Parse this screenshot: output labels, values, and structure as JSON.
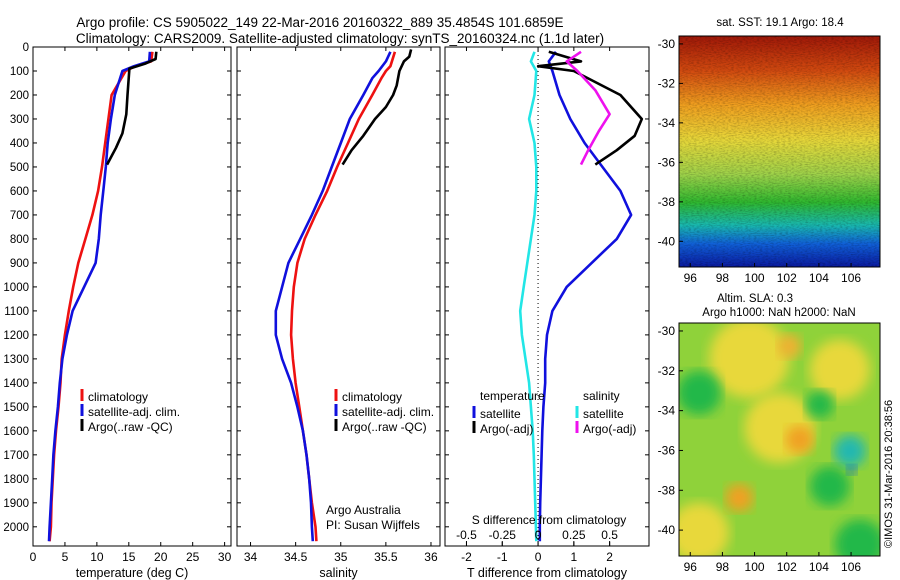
{
  "header": {
    "line1": "Argo profile: CS 5905022_149 22-Mar-2016 20160322_889 35.4854S 101.6859E",
    "line2": "Climatology: CARS2009. Satellite-adjusted climatology: synTS_20160324.nc (1.1d later)"
  },
  "colors": {
    "climatology": "#ee1111",
    "satellite": "#1010dd",
    "argo": "#000000",
    "sat_salinity": "#22e6e6",
    "argo_salinity": "#ee11ee"
  },
  "chart_data": [
    {
      "type": "line",
      "id": "temperature",
      "xlabel": "temperature (deg C)",
      "ylabel": "",
      "xlim": [
        0,
        31
      ],
      "ylim": [
        2080,
        0
      ],
      "y_inverted": true,
      "xticks": [
        "0",
        "5",
        "10",
        "15",
        "20",
        "25",
        "30"
      ],
      "yticks": [
        "0",
        "100",
        "200",
        "300",
        "400",
        "500",
        "600",
        "700",
        "800",
        "900",
        "1000",
        "1100",
        "1200",
        "1300",
        "1400",
        "1500",
        "1600",
        "1700",
        "1800",
        "1900",
        "2000"
      ],
      "legend": [
        "climatology",
        "satellite-adj. clim.",
        "Argo(..raw -QC)"
      ],
      "series": [
        {
          "name": "climatology",
          "color": "#ee1111",
          "x": [
            18.7,
            18.5,
            16,
            14.5,
            12.3,
            11.8,
            11.3,
            10.8,
            10.2,
            9.3,
            8.2,
            7.1,
            6.3,
            5.6,
            5,
            4.5,
            4.3,
            4,
            3.6,
            3.3,
            3.1,
            2.9,
            2.8,
            2.6
          ],
          "y": [
            20,
            60,
            80,
            100,
            200,
            300,
            400,
            500,
            600,
            700,
            800,
            900,
            1000,
            1100,
            1200,
            1300,
            1400,
            1500,
            1600,
            1700,
            1800,
            1900,
            2000,
            2060
          ]
        },
        {
          "name": "satellite-adj. clim.",
          "color": "#1010dd",
          "x": [
            18.3,
            18.2,
            15.8,
            14,
            12.8,
            12.2,
            11.7,
            11.4,
            11,
            10.6,
            10.3,
            9.8,
            8,
            6.2,
            5.3,
            4.6,
            4.2,
            3.9,
            3.5,
            3.2,
            3,
            2.8,
            2.6,
            2.5
          ],
          "y": [
            20,
            60,
            80,
            100,
            200,
            300,
            400,
            500,
            600,
            700,
            800,
            900,
            1000,
            1100,
            1200,
            1300,
            1400,
            1500,
            1600,
            1700,
            1800,
            1900,
            2000,
            2060
          ]
        },
        {
          "name": "Argo(..raw -QC)",
          "color": "#000000",
          "x": [
            19.3,
            19.2,
            17.5,
            15.1,
            14.8,
            14.6,
            14,
            13,
            12.2,
            11.6
          ],
          "y": [
            20,
            50,
            70,
            90,
            200,
            280,
            360,
            420,
            460,
            490
          ]
        }
      ]
    },
    {
      "type": "line",
      "id": "salinity",
      "xlabel": "salinity",
      "ylabel": "",
      "xlim": [
        33.85,
        36.1
      ],
      "ylim": [
        2080,
        0
      ],
      "y_inverted": true,
      "xticks": [
        "34",
        "34.5",
        "35",
        "35.5",
        "36"
      ],
      "legend": [
        "climatology",
        "satellite-adj. clim.",
        "Argo(..raw -QC)"
      ],
      "annotation": [
        "Argo Australia",
        "PI: Susan Wijffels"
      ],
      "series": [
        {
          "name": "climatology",
          "color": "#ee1111",
          "x": [
            35.6,
            35.55,
            35.5,
            35.45,
            35.35,
            35.2,
            35.08,
            34.96,
            34.85,
            34.72,
            34.6,
            34.52,
            34.48,
            34.46,
            34.45,
            34.47,
            34.5,
            34.54,
            34.58,
            34.62,
            34.65,
            34.68,
            34.72,
            34.73
          ],
          "y": [
            20,
            80,
            100,
            130,
            200,
            300,
            400,
            500,
            600,
            700,
            800,
            900,
            1000,
            1100,
            1200,
            1300,
            1400,
            1500,
            1600,
            1700,
            1800,
            1900,
            2000,
            2060
          ]
        },
        {
          "name": "satellite-adj. clim.",
          "color": "#1010dd",
          "x": [
            35.55,
            35.5,
            35.42,
            35.35,
            35.25,
            35.1,
            35,
            34.9,
            34.8,
            34.68,
            34.55,
            34.42,
            34.35,
            34.28,
            34.28,
            34.35,
            34.45,
            34.52,
            34.58,
            34.62,
            34.65,
            34.67,
            34.68,
            34.69
          ],
          "y": [
            20,
            60,
            100,
            130,
            200,
            300,
            400,
            500,
            600,
            700,
            800,
            900,
            1000,
            1100,
            1200,
            1300,
            1400,
            1500,
            1600,
            1700,
            1800,
            1900,
            2000,
            2060
          ]
        },
        {
          "name": "Argo(..raw -QC)",
          "color": "#000000",
          "x": [
            35.78,
            35.76,
            35.7,
            35.65,
            35.62,
            35.58,
            35.5,
            35.38,
            35.25,
            35.12,
            35.02
          ],
          "y": [
            10,
            40,
            60,
            100,
            160,
            200,
            250,
            300,
            370,
            430,
            490
          ]
        }
      ]
    },
    {
      "type": "line",
      "id": "difference",
      "xlabel": "T difference from climatology",
      "xlabel_top": "S difference from climatology",
      "xlim": [
        -2.6,
        3.1
      ],
      "ylim": [
        2080,
        0
      ],
      "y_inverted": true,
      "xticks": [
        "-2",
        "-1",
        "0",
        "1",
        "2"
      ],
      "xticks_top": [
        "-0.5",
        "-0.25",
        "0",
        "0.25",
        "0.5"
      ],
      "legend_titles": [
        "temperature",
        "salinity"
      ],
      "legend": [
        "satellite",
        "Argo(-adj)",
        "satellite",
        "Argo(-adj)"
      ],
      "series": [
        {
          "name": "temperature satellite",
          "color": "#1010dd",
          "x": [
            0.5,
            0.3,
            0.4,
            0.6,
            0.9,
            1.3,
            1.8,
            2.3,
            2.6,
            2.2,
            1.5,
            0.8,
            0.4,
            0.25,
            0.2,
            0.2,
            0.15,
            0.12,
            0.1,
            0.08,
            0.06,
            0.05,
            0.05
          ],
          "y": [
            20,
            60,
            100,
            200,
            300,
            400,
            500,
            600,
            700,
            800,
            900,
            1000,
            1100,
            1200,
            1300,
            1400,
            1500,
            1600,
            1700,
            1800,
            1900,
            2000,
            2060
          ]
        },
        {
          "name": "temperature Argo(-adj)",
          "color": "#000000",
          "x": [
            0.3,
            1.2,
            0,
            1,
            2.3,
            2.9,
            2.7,
            2.2,
            1.6
          ],
          "y": [
            20,
            60,
            80,
            100,
            200,
            300,
            370,
            430,
            490
          ]
        },
        {
          "name": "salinity satellite",
          "color": "#22e6e6",
          "x": [
            -0.1,
            -0.2,
            -0.05,
            -0.1,
            -0.25,
            -0.1,
            -0.05,
            -0.05,
            -0.1,
            -0.2,
            -0.3,
            -0.4,
            -0.5,
            -0.45,
            -0.35,
            -0.25,
            -0.2,
            -0.15,
            -0.12,
            -0.1,
            -0.08,
            -0.06,
            -0.05
          ],
          "y": [
            20,
            60,
            100,
            200,
            300,
            400,
            500,
            600,
            700,
            800,
            900,
            1000,
            1100,
            1200,
            1300,
            1400,
            1500,
            1600,
            1700,
            1800,
            1900,
            2000,
            2060
          ]
        },
        {
          "name": "salinity Argo(-adj)",
          "color": "#ee11ee",
          "x": [
            1.2,
            0.8,
            1.1,
            1.6,
            2,
            1.7,
            1.4,
            1.2
          ],
          "y": [
            20,
            60,
            100,
            180,
            280,
            350,
            430,
            490
          ]
        }
      ]
    },
    {
      "type": "heatmap",
      "id": "sst_map",
      "title": "sat. SST: 19.1  Argo: 18.4",
      "xlim": [
        95.3,
        107.8
      ],
      "ylim": [
        -41.3,
        -29.6
      ],
      "xticks": [
        "96",
        "98",
        "100",
        "102",
        "104",
        "106"
      ],
      "yticks": [
        "-30",
        "-32",
        "-34",
        "-36",
        "-38",
        "-40"
      ]
    },
    {
      "type": "heatmap",
      "id": "sla_map",
      "title": "Altim. SLA: 0.3",
      "subtitle": "Argo h1000: NaN h2000: NaN",
      "xlim": [
        95.3,
        107.8
      ],
      "ylim": [
        -41.3,
        -29.6
      ],
      "xticks": [
        "96",
        "98",
        "100",
        "102",
        "104",
        "106"
      ],
      "yticks": [
        "-30",
        "-32",
        "-34",
        "-36",
        "-38",
        "-40"
      ]
    }
  ],
  "side_stamp": "©IMOS 31-Mar-2016 20:38:56"
}
